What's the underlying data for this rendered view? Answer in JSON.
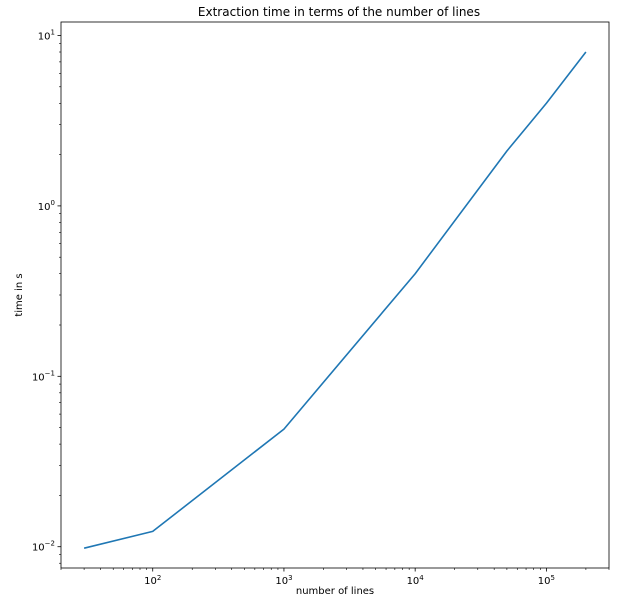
{
  "chart_data": {
    "type": "line",
    "title": "Extraction time in terms of the number of lines",
    "xlabel": "number of lines",
    "ylabel": "time in s",
    "xscale": "log",
    "yscale": "log",
    "xlim": [
      20,
      300000
    ],
    "ylim": [
      0.0075,
      12
    ],
    "grid": false,
    "legend": "none",
    "x_major_ticks": [
      {
        "value": 100,
        "base": "10",
        "exp": "2"
      },
      {
        "value": 1000,
        "base": "10",
        "exp": "3"
      },
      {
        "value": 10000,
        "base": "10",
        "exp": "4"
      },
      {
        "value": 100000,
        "base": "10",
        "exp": "5"
      }
    ],
    "y_major_ticks": [
      {
        "value": 0.01,
        "base": "10",
        "exp": "−2"
      },
      {
        "value": 0.1,
        "base": "10",
        "exp": "−1"
      },
      {
        "value": 1,
        "base": "10",
        "exp": "0"
      },
      {
        "value": 10,
        "base": "10",
        "exp": "1"
      }
    ],
    "series": [
      {
        "color": "#1f77b4",
        "x": [
          30,
          100,
          1000,
          10000,
          50000,
          100000,
          200000
        ],
        "y": [
          0.0098,
          0.0123,
          0.049,
          0.4,
          2.1,
          4.0,
          8.0
        ]
      }
    ]
  }
}
